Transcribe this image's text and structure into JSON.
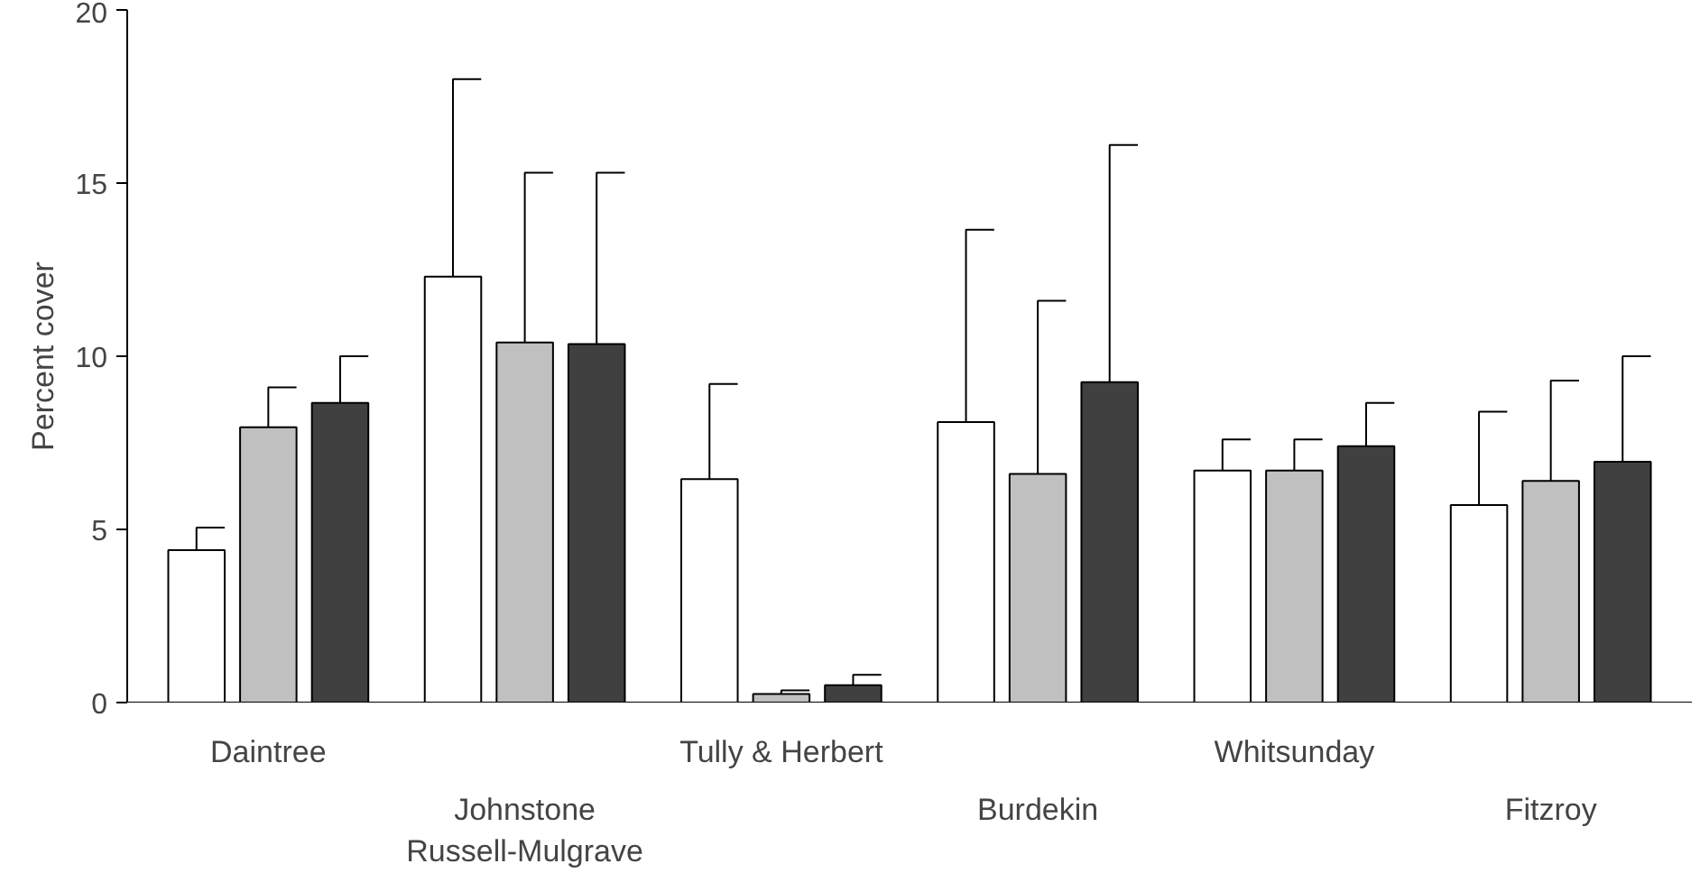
{
  "chart_data": {
    "type": "bar",
    "ylabel": "Percent cover",
    "categories": [
      "Daintree",
      "Johnstone\nRussell-Mulgrave",
      "Tully & Herbert",
      "Burdekin",
      "Whitsunday",
      "Fitzroy"
    ],
    "series": [
      {
        "color": "#ffffff",
        "values": [
          4.4,
          12.3,
          6.45,
          8.1,
          6.7,
          5.7
        ],
        "errors": [
          [
            4.4,
            5.05
          ],
          [
            12.3,
            18.0
          ],
          [
            6.45,
            9.2
          ],
          [
            8.1,
            13.65
          ],
          [
            6.7,
            7.6
          ],
          [
            5.7,
            8.4
          ]
        ]
      },
      {
        "color": "#c0c0c0",
        "values": [
          7.95,
          10.4,
          0.25,
          6.6,
          6.7,
          6.4
        ],
        "errors": [
          [
            7.95,
            9.1
          ],
          [
            10.4,
            15.3
          ],
          [
            0.25,
            0.35
          ],
          [
            6.6,
            11.6
          ],
          [
            6.7,
            7.6
          ],
          [
            6.4,
            9.3
          ]
        ]
      },
      {
        "color": "#404040",
        "values": [
          8.65,
          10.35,
          0.5,
          9.25,
          7.4,
          6.95
        ],
        "errors": [
          [
            8.65,
            10.0
          ],
          [
            10.35,
            15.3
          ],
          [
            0.5,
            0.8
          ],
          [
            9.25,
            16.1
          ],
          [
            7.4,
            8.65
          ],
          [
            6.95,
            10.0
          ]
        ]
      }
    ],
    "ylim": [
      0,
      20
    ],
    "yticks": [
      0,
      5,
      10,
      15,
      20
    ],
    "grid": false
  }
}
